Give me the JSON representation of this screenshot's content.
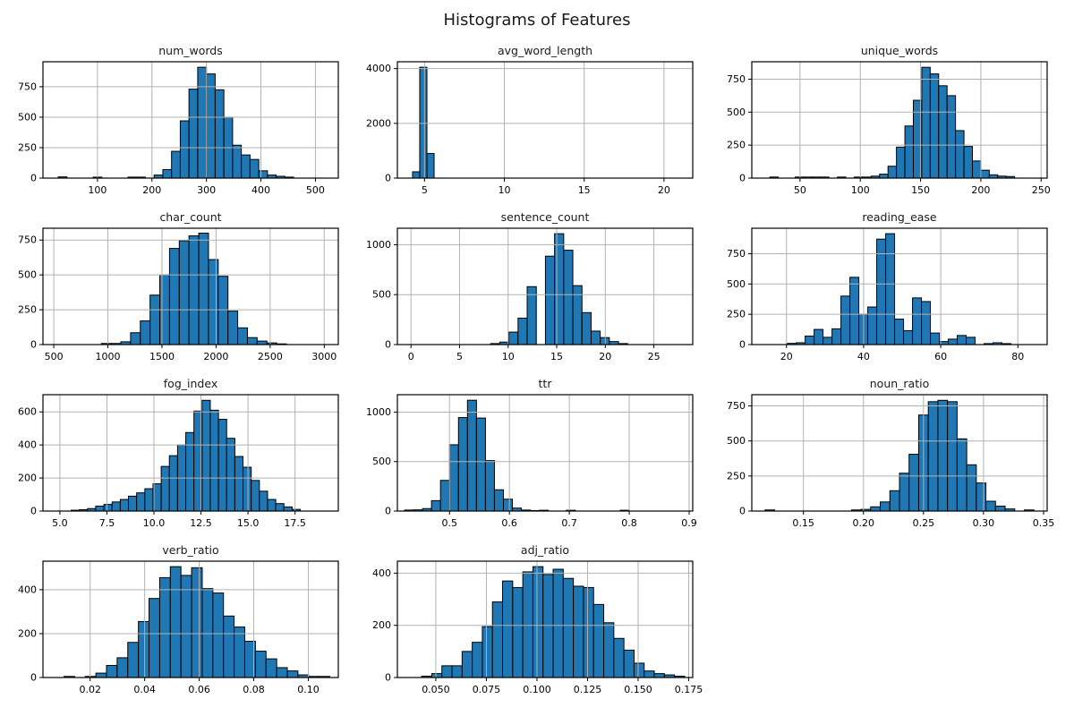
{
  "figure": {
    "suptitle": "Histograms of Features"
  },
  "style": {
    "bar_fill": "#1f77b4",
    "bar_edge": "#000000",
    "grid_color": "#b2b2b2",
    "axis_color": "#000000",
    "text_color": "#000000",
    "background": "#ffffff"
  },
  "chart_data": [
    {
      "type": "bar",
      "kind": "histogram",
      "title": "num_words",
      "xlim": [
        0,
        542
      ],
      "ylim": [
        0,
        955
      ],
      "xticks": [
        100,
        200,
        300,
        400,
        500
      ],
      "xtick_labels": [
        "100",
        "200",
        "300",
        "400",
        "500"
      ],
      "yticks": [
        0,
        250,
        500,
        750
      ],
      "ytick_labels": [
        "0",
        "250",
        "500",
        "750"
      ],
      "bin_start": 28,
      "bin_width": 16,
      "counts": [
        10,
        0,
        0,
        0,
        8,
        0,
        0,
        0,
        8,
        8,
        0,
        25,
        70,
        220,
        470,
        730,
        910,
        855,
        725,
        500,
        270,
        190,
        153,
        60,
        25,
        15,
        8
      ]
    },
    {
      "type": "bar",
      "kind": "histogram",
      "title": "avg_word_length",
      "xlim": [
        3.3,
        21.8
      ],
      "ylim": [
        0,
        4250
      ],
      "xticks": [
        5,
        10,
        15,
        20
      ],
      "xtick_labels": [
        "5",
        "10",
        "15",
        "20"
      ],
      "yticks": [
        0,
        2000,
        4000
      ],
      "ytick_labels": [
        "0",
        "2000",
        "4000"
      ],
      "bin_start": 4.25,
      "bin_width": 0.45,
      "counts": [
        230,
        4050,
        900
      ]
    },
    {
      "type": "bar",
      "kind": "histogram",
      "title": "unique_words",
      "xlim": [
        10,
        255
      ],
      "ylim": [
        0,
        882
      ],
      "xticks": [
        50,
        100,
        150,
        200,
        250
      ],
      "xtick_labels": [
        "50",
        "100",
        "150",
        "200",
        "250"
      ],
      "yticks": [
        0,
        250,
        500,
        750
      ],
      "ytick_labels": [
        "0",
        "250",
        "500",
        "750"
      ],
      "bin_start": 25,
      "bin_width": 7,
      "counts": [
        8,
        0,
        0,
        8,
        8,
        8,
        8,
        0,
        8,
        0,
        8,
        8,
        15,
        30,
        90,
        235,
        395,
        590,
        840,
        790,
        700,
        625,
        360,
        240,
        130,
        60,
        25,
        15,
        12
      ]
    },
    {
      "type": "bar",
      "kind": "histogram",
      "title": "char_count",
      "xlim": [
        400,
        3130
      ],
      "ylim": [
        0,
        835
      ],
      "xticks": [
        500,
        1000,
        1500,
        2000,
        2500,
        3000
      ],
      "xtick_labels": [
        "500",
        "1000",
        "1500",
        "2000",
        "2500",
        "3000"
      ],
      "yticks": [
        0,
        250,
        500,
        750
      ],
      "ytick_labels": [
        "0",
        "250",
        "500",
        "750"
      ],
      "bin_start": 940,
      "bin_width": 90,
      "counts": [
        8,
        8,
        20,
        85,
        170,
        355,
        500,
        690,
        745,
        780,
        800,
        610,
        490,
        240,
        120,
        50,
        25,
        12,
        5
      ]
    },
    {
      "type": "bar",
      "kind": "histogram",
      "title": "sentence_count",
      "xlim": [
        -1.4,
        29
      ],
      "ylim": [
        0,
        1165
      ],
      "xticks": [
        0,
        5,
        10,
        15,
        20,
        25
      ],
      "xtick_labels": [
        "0",
        "5",
        "10",
        "15",
        "20",
        "25"
      ],
      "yticks": [
        0,
        500,
        1000
      ],
      "ytick_labels": [
        "0",
        "500",
        "1000"
      ],
      "bin_start": 8.2,
      "bin_width": 0.94,
      "counts": [
        10,
        25,
        125,
        265,
        580,
        0,
        885,
        1110,
        945,
        590,
        320,
        135,
        70,
        30,
        10
      ]
    },
    {
      "type": "bar",
      "kind": "histogram",
      "title": "reading_ease",
      "xlim": [
        11,
        87.6
      ],
      "ylim": [
        0,
        960
      ],
      "xticks": [
        20,
        40,
        60,
        80
      ],
      "xtick_labels": [
        "20",
        "40",
        "60",
        "80"
      ],
      "yticks": [
        0,
        250,
        500,
        750
      ],
      "ytick_labels": [
        "0",
        "250",
        "500",
        "750"
      ],
      "bin_start": 20.2,
      "bin_width": 2.32,
      "counts": [
        10,
        15,
        70,
        125,
        60,
        130,
        400,
        555,
        250,
        310,
        870,
        915,
        210,
        115,
        385,
        355,
        95,
        25,
        45,
        75,
        60,
        0,
        8,
        15,
        8
      ]
    },
    {
      "type": "bar",
      "kind": "histogram",
      "title": "fog_index",
      "xlim": [
        4.1,
        19.8
      ],
      "ylim": [
        0,
        704
      ],
      "xticks": [
        5,
        7.5,
        10,
        12.5,
        15,
        17.5
      ],
      "xtick_labels": [
        "5.0",
        "7.5",
        "10.0",
        "12.5",
        "15.0",
        "17.5"
      ],
      "yticks": [
        0,
        200,
        400,
        600
      ],
      "ytick_labels": [
        "0",
        "200",
        "400",
        "600"
      ],
      "bin_start": 5.6,
      "bin_width": 0.435,
      "counts": [
        5,
        8,
        15,
        30,
        40,
        55,
        70,
        90,
        110,
        135,
        165,
        270,
        335,
        400,
        475,
        605,
        670,
        610,
        555,
        440,
        330,
        265,
        185,
        120,
        70,
        45,
        25,
        10
      ]
    },
    {
      "type": "bar",
      "kind": "histogram",
      "title": "ttr",
      "xlim": [
        0.413,
        0.906
      ],
      "ylim": [
        0,
        1176
      ],
      "xticks": [
        0.5,
        0.6,
        0.7,
        0.8,
        0.9
      ],
      "xtick_labels": [
        "0.5",
        "0.6",
        "0.7",
        "0.8",
        "0.9"
      ],
      "yticks": [
        0,
        500,
        1000
      ],
      "ytick_labels": [
        "0",
        "500",
        "1000"
      ],
      "bin_start": 0.425,
      "bin_width": 0.015,
      "counts": [
        10,
        12,
        25,
        105,
        310,
        670,
        945,
        1120,
        940,
        510,
        215,
        120,
        30,
        10,
        5,
        8,
        0,
        0,
        8,
        0,
        0,
        0,
        0,
        0,
        8
      ]
    },
    {
      "type": "bar",
      "kind": "histogram",
      "title": "noun_ratio",
      "xlim": [
        0.107,
        0.353
      ],
      "ylim": [
        0,
        830
      ],
      "xticks": [
        0.15,
        0.2,
        0.25,
        0.3,
        0.35
      ],
      "xtick_labels": [
        "0.15",
        "0.20",
        "0.25",
        "0.30",
        "0.35"
      ],
      "yticks": [
        0,
        250,
        500,
        750
      ],
      "ytick_labels": [
        "0",
        "250",
        "500",
        "750"
      ],
      "bin_start": 0.118,
      "bin_width": 0.008,
      "counts": [
        8,
        0,
        0,
        0,
        0,
        0,
        0,
        0,
        0,
        8,
        12,
        30,
        65,
        145,
        270,
        405,
        685,
        780,
        790,
        780,
        515,
        330,
        200,
        70,
        35,
        15,
        0,
        8
      ]
    },
    {
      "type": "bar",
      "kind": "histogram",
      "title": "verb_ratio",
      "xlim": [
        0.0027,
        0.111
      ],
      "ylim": [
        0,
        530
      ],
      "xticks": [
        0.02,
        0.04,
        0.06,
        0.08,
        0.1
      ],
      "xtick_labels": [
        "0.02",
        "0.04",
        "0.06",
        "0.08",
        "0.10"
      ],
      "yticks": [
        0,
        200,
        400
      ],
      "ytick_labels": [
        "0",
        "200",
        "400"
      ],
      "bin_start": 0.0104,
      "bin_width": 0.0039,
      "counts": [
        5,
        0,
        5,
        20,
        55,
        90,
        160,
        255,
        360,
        455,
        505,
        465,
        500,
        405,
        385,
        280,
        230,
        165,
        120,
        85,
        45,
        30,
        12,
        5,
        5
      ]
    },
    {
      "type": "bar",
      "kind": "histogram",
      "title": "adj_ratio",
      "xlim": [
        0.031,
        0.177
      ],
      "ylim": [
        0,
        446
      ],
      "xticks": [
        0.05,
        0.075,
        0.1,
        0.125,
        0.15,
        0.175
      ],
      "xtick_labels": [
        "0.050",
        "0.075",
        "0.100",
        "0.125",
        "0.150",
        "0.175"
      ],
      "yticks": [
        0,
        200,
        400
      ],
      "ytick_labels": [
        "0",
        "200",
        "400"
      ],
      "bin_start": 0.043,
      "bin_width": 0.005,
      "counts": [
        5,
        15,
        45,
        45,
        100,
        135,
        195,
        290,
        370,
        345,
        405,
        425,
        395,
        415,
        380,
        350,
        345,
        280,
        210,
        150,
        105,
        55,
        25,
        15,
        10,
        5
      ]
    }
  ]
}
